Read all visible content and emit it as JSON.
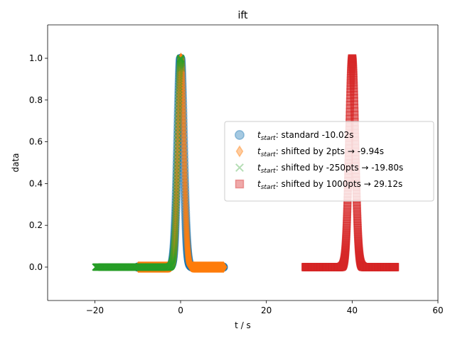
{
  "chart_data": {
    "type": "scatter",
    "title": "ift",
    "xlabel": "t / s",
    "ylabel": "data",
    "xlim": [
      -31,
      60
    ],
    "ylim": [
      -0.16,
      1.16
    ],
    "xticks": [
      -20,
      0,
      20,
      40,
      60
    ],
    "yticks": [
      0.0,
      0.2,
      0.4,
      0.6,
      0.8,
      1.0
    ],
    "xtick_labels": [
      "−20",
      "0",
      "20",
      "40",
      "60"
    ],
    "ytick_labels": [
      "0.0",
      "0.2",
      "0.4",
      "0.6",
      "0.8",
      "1.0"
    ],
    "grid": false,
    "legend_position": "center-right",
    "series": [
      {
        "name_sub": "start",
        "name_text": ": standard -10.02s",
        "marker": "circle",
        "color": "#1f77b4",
        "x_start": -10.02,
        "x_end": 10.0,
        "peak_center": 0.0,
        "peak_width": 1.0,
        "peak_height": 1.0
      },
      {
        "name_sub": "start",
        "name_text": ": shifted by 2pts → -9.94s",
        "marker": "diamond",
        "color": "#ff7f0e",
        "x_start": -9.94,
        "x_end": 10.08,
        "peak_center": 0.08,
        "peak_width": 1.0,
        "peak_height": 1.0
      },
      {
        "name_sub": "start",
        "name_text": ": shifted by -250pts → -19.80s",
        "marker": "x",
        "color": "#2ca02c",
        "x_start": -19.8,
        "x_end": 0.22,
        "peak_center": 0.0,
        "peak_width": 1.0,
        "peak_height": 1.0
      },
      {
        "name_sub": "start",
        "name_text": ": shifted by 1000pts → 29.12s",
        "marker": "square",
        "color": "#d62728",
        "x_start": 29.12,
        "x_end": 50.0,
        "peak_center": 40.0,
        "peak_width": 1.0,
        "peak_height": 1.0
      }
    ]
  }
}
